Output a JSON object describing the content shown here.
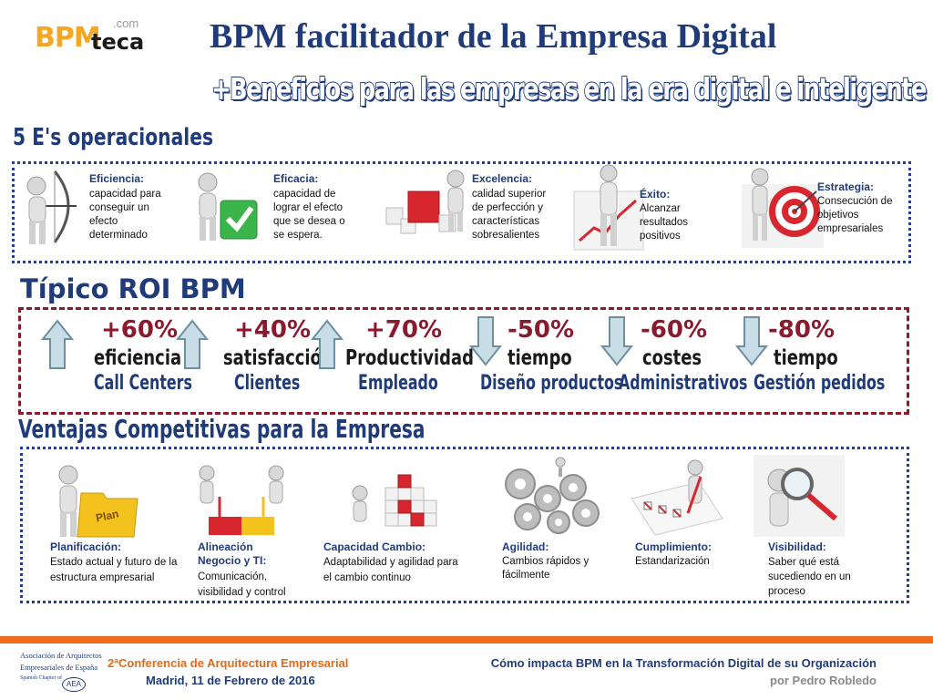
{
  "logo": {
    "bpm": "BPM",
    "teca": "teca",
    "com": ".com"
  },
  "header": {
    "title": "BPM facilitador de la Empresa Digital",
    "subtitle": "+Beneficios para las empresas en la era digital e inteligente"
  },
  "section1": {
    "heading": "5 E's operacionales",
    "items": [
      {
        "title": "Eficiencia:",
        "text": "capacidad para conseguir un efecto determinado"
      },
      {
        "title": "Eficacia:",
        "text": "capacidad de lograr el efecto que se desea o se espera."
      },
      {
        "title": "Excelencia:",
        "text": "calidad superior de perfección y características sobresalientes"
      },
      {
        "title": "Éxito:",
        "text": "Alcanzar resultados positivos"
      },
      {
        "title": "Estrategia:",
        "text": "Consecución de objetivos empresariales"
      }
    ]
  },
  "section2": {
    "heading": "Típico ROI BPM",
    "items": [
      {
        "pct": "+60%",
        "line1": "eficiencia",
        "line2": "Call Centers",
        "direction": "up"
      },
      {
        "pct": "+40%",
        "line1": "satisfacción",
        "line2": "Clientes",
        "direction": "up"
      },
      {
        "pct": "+70%",
        "line1": "Productividad",
        "line2": "Empleado",
        "direction": "up"
      },
      {
        "pct": "-50%",
        "line1": "tiempo",
        "line2": "Diseño productos",
        "direction": "down"
      },
      {
        "pct": "-60%",
        "line1": "costes",
        "line2": "Administrativos",
        "direction": "down"
      },
      {
        "pct": "-80%",
        "line1": "tiempo",
        "line2": "Gestión pedidos",
        "direction": "down"
      }
    ]
  },
  "section3": {
    "heading": "Ventajas Competitivas para la Empresa",
    "plan_label": "Plan",
    "items": [
      {
        "title": "Planificación:",
        "text": "Estado actual y futuro de la estructura empresarial"
      },
      {
        "title": "Alineación Negocio y TI:",
        "text": "Comunicación, visibilidad y control"
      },
      {
        "title": "Capacidad Cambio:",
        "text": "Adaptabilidad y agilidad para el cambio continuo"
      },
      {
        "title": "Agilidad:",
        "text": "Cambios rápidos y fácilmente"
      },
      {
        "title": "Cumplimiento:",
        "text": "Estandarización"
      },
      {
        "title": "Visibilidad:",
        "text": "Saber qué está sucediendo en un proceso"
      }
    ]
  },
  "footer": {
    "org_line1": "Asociación de Arquitectos",
    "org_line2": "Empresariales de España",
    "org_line3": "Spanish Chapter of",
    "org_abbr": "AEA",
    "conference": "2ªConferencia de Arquitectura Empresarial",
    "place_date": "Madrid, 11 de Febrero de 2016",
    "talk_title": "Cómo impacta BPM en la Transformación Digital de su Organización",
    "author": "por Pedro Robledo"
  },
  "colors": {
    "navy": "#1f3b7a",
    "maroon": "#8b1a2f",
    "orange": "#f26b1d",
    "dotted_blue": "#1a3fa8"
  }
}
